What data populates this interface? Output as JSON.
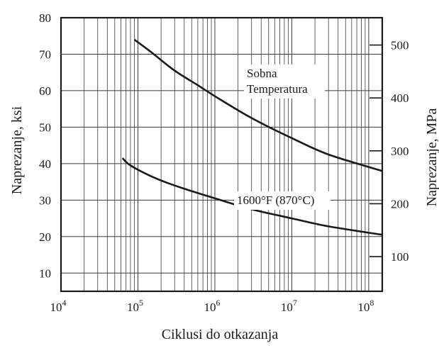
{
  "chart_data": {
    "type": "line",
    "xlabel": "Ciklusi do otkazanja",
    "ylabel": "Naprezanje, ksi",
    "ylabel_right": "Naprezanje, MPa",
    "x_scale": "log",
    "xlim": [
      10000,
      150000000
    ],
    "ylim": [
      5,
      80
    ],
    "ylim_right_mpa": [
      34.5,
      551.6
    ],
    "x_ticks": [
      {
        "base": "10",
        "exp": "4",
        "value": 10000
      },
      {
        "base": "10",
        "exp": "5",
        "value": 100000
      },
      {
        "base": "10",
        "exp": "6",
        "value": 1000000
      },
      {
        "base": "10",
        "exp": "7",
        "value": 10000000
      },
      {
        "base": "10",
        "exp": "8",
        "value": 100000000
      }
    ],
    "y_ticks_left": [
      "10",
      "20",
      "30",
      "40",
      "50",
      "60",
      "70",
      "80"
    ],
    "y_ticks_right": [
      "100",
      "200",
      "300",
      "400",
      "500"
    ],
    "grid": true,
    "series": [
      {
        "name": "Sobna Temperatura",
        "label_lines": [
          "Sobna",
          "Temperatura"
        ],
        "points": [
          {
            "x": 90000,
            "y": 74
          },
          {
            "x": 150000,
            "y": 70.5
          },
          {
            "x": 300000,
            "y": 65.5
          },
          {
            "x": 600000,
            "y": 61.5
          },
          {
            "x": 1000000,
            "y": 58.5
          },
          {
            "x": 3000000,
            "y": 52.5
          },
          {
            "x": 10000000,
            "y": 47
          },
          {
            "x": 30000000,
            "y": 42.5
          },
          {
            "x": 150000000,
            "y": 38
          }
        ]
      },
      {
        "name": "1600°F (870°C)",
        "label_lines": [
          "1600°F (870°C)"
        ],
        "points": [
          {
            "x": 63000,
            "y": 41.5
          },
          {
            "x": 80000,
            "y": 39.5
          },
          {
            "x": 150000,
            "y": 36.5
          },
          {
            "x": 300000,
            "y": 34
          },
          {
            "x": 1000000,
            "y": 30.5
          },
          {
            "x": 3000000,
            "y": 27.5
          },
          {
            "x": 10000000,
            "y": 25
          },
          {
            "x": 30000000,
            "y": 22.8
          },
          {
            "x": 150000000,
            "y": 20.5
          }
        ]
      }
    ]
  }
}
